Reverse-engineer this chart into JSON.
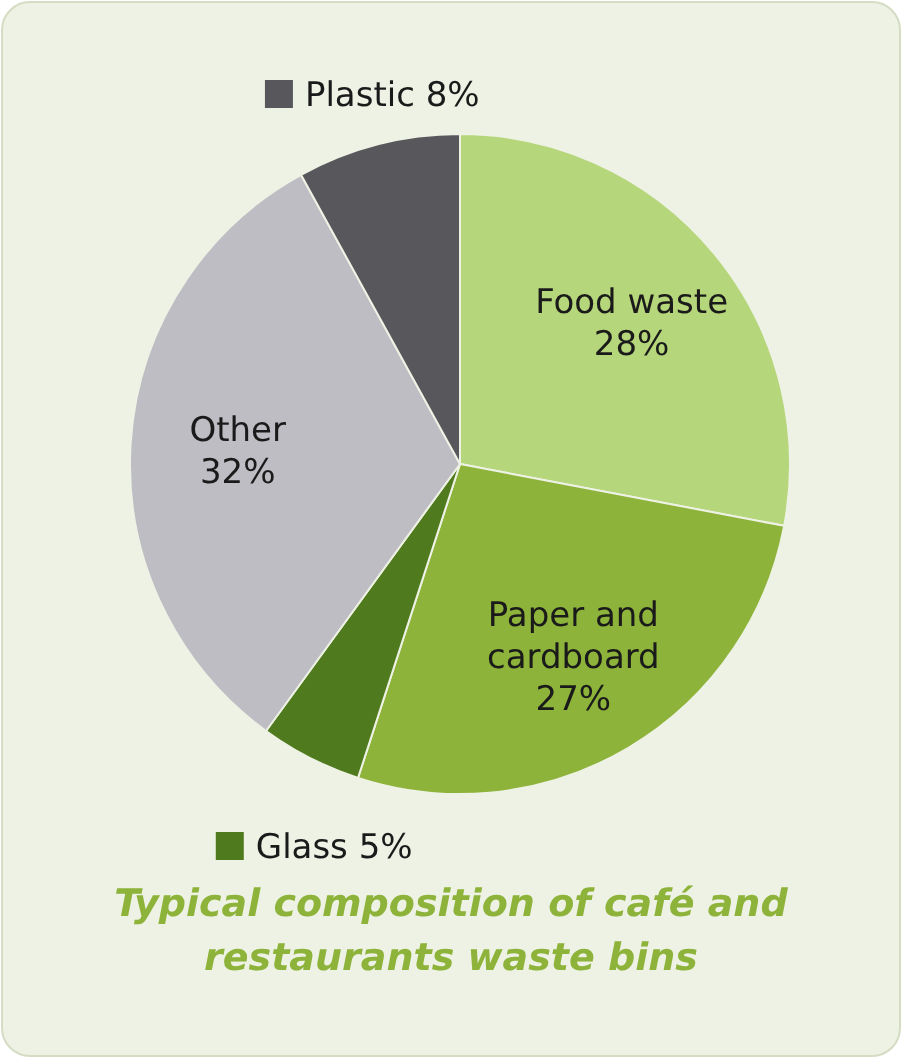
{
  "chart_data": {
    "type": "pie",
    "title": "Typical composition of café and restaurants waste bins",
    "categories": [
      "Food waste",
      "Paper and cardboard",
      "Glass",
      "Other",
      "Plastic"
    ],
    "values": [
      28,
      27,
      5,
      32,
      8
    ],
    "value_labels": [
      "28%",
      "27%",
      "5%",
      "32%",
      "8%"
    ],
    "colors": [
      "#b5d67a",
      "#8db33a",
      "#4f7a1e",
      "#bdbdc3",
      "#58585c"
    ],
    "legend": "left"
  }
}
